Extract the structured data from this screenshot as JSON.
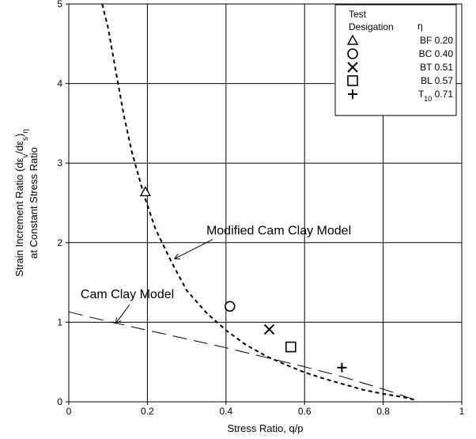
{
  "chart_data": {
    "type": "scatter",
    "x_axis": {
      "label": "Stress Ratio, q/p",
      "range": [
        0,
        1
      ],
      "ticks": [
        0,
        0.2,
        0.4,
        0.6,
        0.8,
        1
      ],
      "tick_labels": [
        "0",
        "0.2",
        "0.4",
        "0.6",
        "0.8",
        "1"
      ]
    },
    "y_axis": {
      "label_parts": [
        "Strain Increment Ratio (dε",
        "v",
        "/dε",
        "s",
        ")",
        "η"
      ],
      "label_line2": "at Constant Stress Ratio",
      "range": [
        0,
        5
      ],
      "ticks": [
        0,
        1,
        2,
        3,
        4,
        5
      ],
      "tick_labels": [
        "0",
        "1",
        "2",
        "3",
        "4",
        "5"
      ]
    },
    "grid": true,
    "legend": {
      "placement": "top-right",
      "title_line1": "Test",
      "title_line2": "Desigation",
      "title_symbol": "η"
    },
    "points": [
      {
        "marker": "triangle",
        "label": "BF",
        "eta_label": "0.20",
        "x": 0.195,
        "y": 2.64
      },
      {
        "marker": "circle",
        "label": "BC",
        "eta_label": "0.40",
        "x": 0.41,
        "y": 1.2
      },
      {
        "marker": "x",
        "label": "BT",
        "eta_label": "0.51",
        "x": 0.51,
        "y": 0.91
      },
      {
        "marker": "square",
        "label": "BL",
        "eta_label": "0.57",
        "x": 0.565,
        "y": 0.69
      },
      {
        "marker": "plus",
        "label": "T",
        "label_sub": "10",
        "eta_label": "0.71",
        "x": 0.695,
        "y": 0.43
      }
    ],
    "curves": [
      {
        "style": "short-dash",
        "x": [
          0.085,
          0.1,
          0.12,
          0.14,
          0.16,
          0.19,
          0.22,
          0.26,
          0.3,
          0.35,
          0.4,
          0.45,
          0.5,
          0.55,
          0.6,
          0.65,
          0.7,
          0.75,
          0.8,
          0.85,
          0.885
        ],
        "y": [
          5.0,
          4.7,
          4.15,
          3.6,
          3.15,
          2.62,
          2.18,
          1.77,
          1.4,
          1.12,
          0.9,
          0.72,
          0.58,
          0.47,
          0.37,
          0.29,
          0.22,
          0.15,
          0.1,
          0.06,
          0.02
        ]
      },
      {
        "style": "long-dash",
        "x": [
          0.0,
          0.1,
          0.2,
          0.3,
          0.4,
          0.5,
          0.6,
          0.7,
          0.8,
          0.885
        ],
        "y": [
          1.13,
          1.01,
          0.9,
          0.79,
          0.68,
          0.56,
          0.44,
          0.31,
          0.16,
          0.02
        ]
      }
    ],
    "annotations": [
      {
        "text": "Modified Cam Clay Model",
        "anchor_x": 0.35,
        "anchor_y": 2.1,
        "arrow_to_x": 0.27,
        "arrow_to_y": 1.8
      },
      {
        "text": "Cam Clay Model",
        "anchor_x": 0.03,
        "anchor_y": 1.3,
        "arrow_to_x": 0.12,
        "arrow_to_y": 0.99
      }
    ]
  },
  "colors": {
    "ink": "#000000",
    "grid": "#000000",
    "background": "#ffffff"
  }
}
